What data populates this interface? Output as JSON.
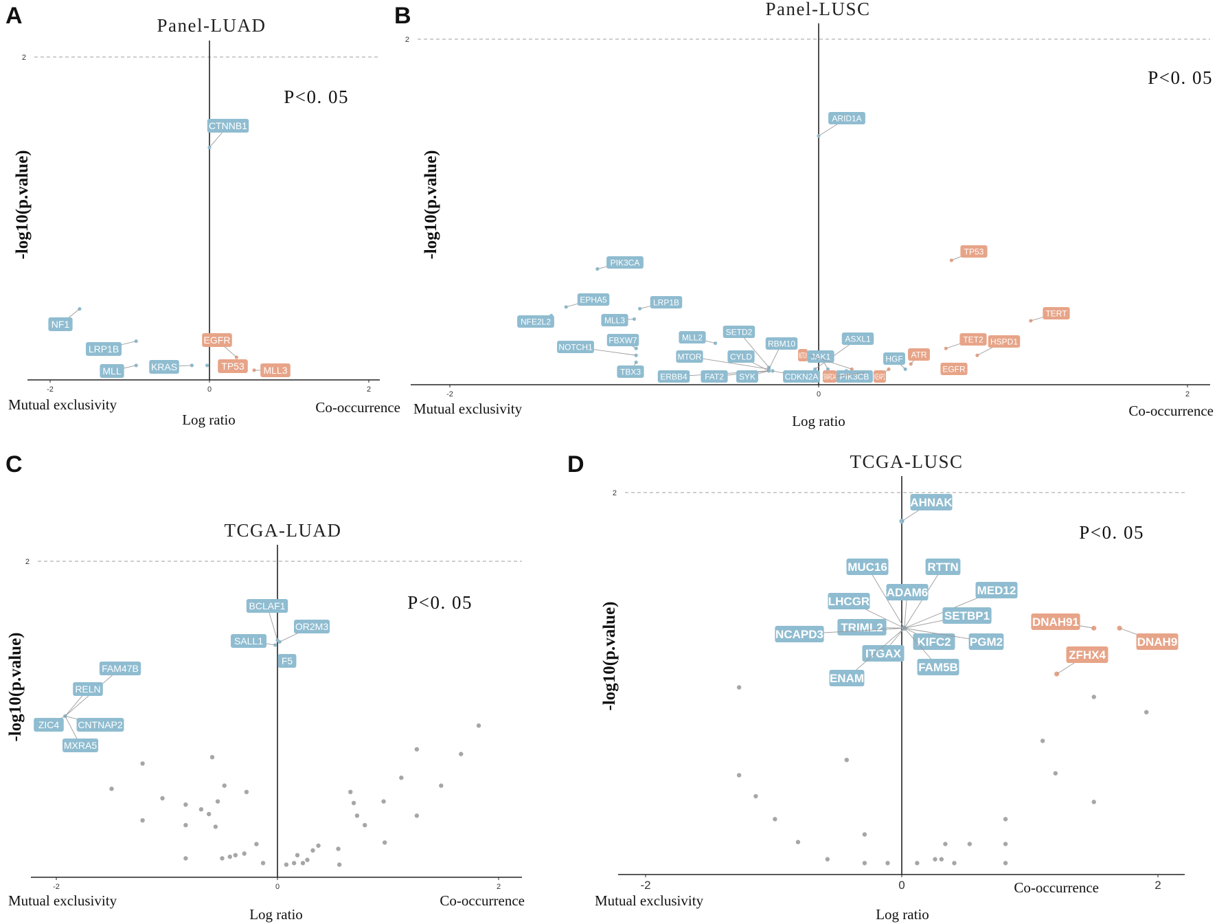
{
  "colors": {
    "blue": "#8fbcd0",
    "orange": "#e7a488",
    "grey": "#a6a6a6",
    "axis": "#222222",
    "dash": "#bdbdbd"
  },
  "chart_data": [
    {
      "panel_letter": "A",
      "type": "scatter",
      "title": "Panel-LUAD",
      "xlabel": "Log ratio",
      "ylabel": "-log10(p.value)",
      "left_label": "Mutual exclusivity",
      "right_label": "Co-occurrence",
      "pvalue_text": "P<0. 05",
      "xlim": [
        -2.2,
        2.15
      ],
      "ylim": [
        0,
        2.13
      ],
      "xticks": [
        "-2",
        "0",
        "2"
      ],
      "yticks": [
        "2"
      ],
      "points": [
        {
          "x": -1.63,
          "y": 0.44,
          "color": "blue",
          "label": "NF1"
        },
        {
          "x": -0.92,
          "y": 0.24,
          "color": "blue",
          "label": "LRP1B"
        },
        {
          "x": -0.92,
          "y": 0.09,
          "color": "blue",
          "label": "MLL"
        },
        {
          "x": -0.22,
          "y": 0.09,
          "color": "blue",
          "label": "KRAS"
        },
        {
          "x": -0.03,
          "y": 0.09,
          "color": "blue",
          "label": ""
        },
        {
          "x": 0.0,
          "y": 1.44,
          "color": "blue",
          "label": "CTNNB1"
        },
        {
          "x": 0.34,
          "y": 0.14,
          "color": "orange",
          "label": "EGFR"
        },
        {
          "x": 0.38,
          "y": 0.08,
          "color": "orange",
          "label": "TP53"
        },
        {
          "x": 0.56,
          "y": 0.06,
          "color": "orange",
          "label": "MLL3"
        }
      ]
    },
    {
      "panel_letter": "B",
      "type": "scatter",
      "title": "Panel-LUSC",
      "xlabel": "Log ratio",
      "ylabel": "-log10(p.value)",
      "left_label": "Mutual exclusivity",
      "right_label": "Co-occurrence",
      "pvalue_text": "P<0. 05",
      "xlim": [
        -2.2,
        2.15
      ],
      "ylim": [
        0,
        2.13
      ],
      "xticks": [
        "-2",
        "0",
        "2"
      ],
      "yticks": [
        "2"
      ],
      "points": [
        {
          "x": -1.2,
          "y": 0.67,
          "color": "blue",
          "label": "PIK3CA"
        },
        {
          "x": -1.37,
          "y": 0.45,
          "color": "blue",
          "label": "EPHA5"
        },
        {
          "x": -1.45,
          "y": 0.4,
          "color": "blue",
          "label": "NFE2L2"
        },
        {
          "x": -0.97,
          "y": 0.44,
          "color": "blue",
          "label": "LRP1B"
        },
        {
          "x": -1.0,
          "y": 0.38,
          "color": "blue",
          "label": "MLL3"
        },
        {
          "x": -0.99,
          "y": 0.21,
          "color": "blue",
          "label": "FBXW7"
        },
        {
          "x": -0.99,
          "y": 0.17,
          "color": "blue",
          "label": "NOTCH1"
        },
        {
          "x": -0.99,
          "y": 0.13,
          "color": "blue",
          "label": "TBX3"
        },
        {
          "x": -0.56,
          "y": 0.24,
          "color": "blue",
          "label": "MLL2"
        },
        {
          "x": -0.27,
          "y": 0.1,
          "color": "blue",
          "label": "SETD2"
        },
        {
          "x": -0.27,
          "y": 0.09,
          "color": "blue",
          "label": "RBM10"
        },
        {
          "x": -0.27,
          "y": 0.09,
          "color": "blue",
          "label": "MTOR"
        },
        {
          "x": -0.27,
          "y": 0.08,
          "color": "blue",
          "label": "CYLD"
        },
        {
          "x": -0.27,
          "y": 0.08,
          "color": "blue",
          "label": "ERBB4"
        },
        {
          "x": -0.27,
          "y": 0.08,
          "color": "blue",
          "label": "FAT2"
        },
        {
          "x": -0.27,
          "y": 0.08,
          "color": "blue",
          "label": "SYK"
        },
        {
          "x": -0.25,
          "y": 0.08,
          "color": "blue",
          "label": "CDKN2A"
        },
        {
          "x": -0.02,
          "y": 0.09,
          "color": "blue",
          "label": "ASXL1"
        },
        {
          "x": 0.05,
          "y": 0.09,
          "color": "blue",
          "label": "JAK1"
        },
        {
          "x": 0.15,
          "y": 0.08,
          "color": "blue",
          "label": "PIK3CB"
        },
        {
          "x": 0.18,
          "y": 0.09,
          "color": "orange",
          "label": "NOTCH"
        },
        {
          "x": 0.25,
          "y": 0.07,
          "color": "orange",
          "label": "SMARCA4"
        },
        {
          "x": 0.38,
          "y": 0.09,
          "color": "orange",
          "label": "KEAP1"
        },
        {
          "x": 0.47,
          "y": 0.09,
          "color": "blue",
          "label": "HGF"
        },
        {
          "x": 0.5,
          "y": 0.12,
          "color": "orange",
          "label": "ATR"
        },
        {
          "x": 0.69,
          "y": 0.21,
          "color": "orange",
          "label": "TET2"
        },
        {
          "x": 0.72,
          "y": 0.1,
          "color": "orange",
          "label": "EGFR"
        },
        {
          "x": 0.86,
          "y": 0.17,
          "color": "orange",
          "label": "HSPD1"
        },
        {
          "x": 0.72,
          "y": 0.72,
          "color": "orange",
          "label": "TP53"
        },
        {
          "x": 1.15,
          "y": 0.37,
          "color": "orange",
          "label": "TERT"
        },
        {
          "x": 0.0,
          "y": 1.44,
          "color": "blue",
          "label": "ARID1A"
        }
      ]
    },
    {
      "panel_letter": "C",
      "type": "scatter",
      "title": "TCGA-LUAD",
      "xlabel": "Log ratio",
      "ylabel": "-log10(p.value)",
      "left_label": "Mutual exclusivity",
      "right_label": "Co-occurrence",
      "pvalue_text": "P<0. 05",
      "xlim": [
        -2.2,
        2.15
      ],
      "ylim": [
        0,
        2.13
      ],
      "xticks": [
        "-2",
        "0",
        "2"
      ],
      "yticks": [
        "2"
      ],
      "points": [
        {
          "x": 0.0,
          "y": 1.5,
          "color": "blue",
          "label": "BCLAF1"
        },
        {
          "x": 0.02,
          "y": 1.49,
          "color": "blue",
          "label": "OR2M3"
        },
        {
          "x": -0.02,
          "y": 1.47,
          "color": "blue",
          "label": "SALL1"
        },
        {
          "x": 0.03,
          "y": 1.38,
          "color": "blue",
          "label": "F5"
        },
        {
          "x": -1.92,
          "y": 1.02,
          "color": "blue",
          "label": "FAM47B"
        },
        {
          "x": -1.92,
          "y": 1.02,
          "color": "blue",
          "label": "RELN"
        },
        {
          "x": -1.92,
          "y": 1.02,
          "color": "blue",
          "label": "ZIC4"
        },
        {
          "x": -1.92,
          "y": 1.02,
          "color": "blue",
          "label": "CNTNAP2"
        },
        {
          "x": -1.92,
          "y": 1.02,
          "color": "blue",
          "label": "MXRA5"
        },
        {
          "x": -1.5,
          "y": 0.56,
          "color": "grey",
          "label": ""
        },
        {
          "x": -1.22,
          "y": 0.72,
          "color": "grey",
          "label": ""
        },
        {
          "x": -1.22,
          "y": 0.36,
          "color": "grey",
          "label": ""
        },
        {
          "x": -1.04,
          "y": 0.5,
          "color": "grey",
          "label": ""
        },
        {
          "x": -0.83,
          "y": 0.46,
          "color": "grey",
          "label": ""
        },
        {
          "x": -0.83,
          "y": 0.33,
          "color": "grey",
          "label": ""
        },
        {
          "x": -0.83,
          "y": 0.12,
          "color": "grey",
          "label": ""
        },
        {
          "x": -0.69,
          "y": 0.43,
          "color": "grey",
          "label": ""
        },
        {
          "x": -0.62,
          "y": 0.4,
          "color": "grey",
          "label": ""
        },
        {
          "x": -0.59,
          "y": 0.76,
          "color": "grey",
          "label": ""
        },
        {
          "x": -0.56,
          "y": 0.32,
          "color": "grey",
          "label": ""
        },
        {
          "x": -0.54,
          "y": 0.48,
          "color": "grey",
          "label": ""
        },
        {
          "x": -0.48,
          "y": 0.58,
          "color": "grey",
          "label": ""
        },
        {
          "x": -0.5,
          "y": 0.12,
          "color": "grey",
          "label": ""
        },
        {
          "x": -0.43,
          "y": 0.13,
          "color": "grey",
          "label": ""
        },
        {
          "x": -0.38,
          "y": 0.14,
          "color": "grey",
          "label": ""
        },
        {
          "x": -0.3,
          "y": 0.15,
          "color": "grey",
          "label": ""
        },
        {
          "x": -0.28,
          "y": 0.54,
          "color": "grey",
          "label": ""
        },
        {
          "x": -0.19,
          "y": 0.21,
          "color": "grey",
          "label": ""
        },
        {
          "x": -0.13,
          "y": 0.09,
          "color": "grey",
          "label": ""
        },
        {
          "x": 0.08,
          "y": 0.08,
          "color": "grey",
          "label": ""
        },
        {
          "x": 0.15,
          "y": 0.09,
          "color": "grey",
          "label": ""
        },
        {
          "x": 0.18,
          "y": 0.14,
          "color": "grey",
          "label": ""
        },
        {
          "x": 0.23,
          "y": 0.09,
          "color": "grey",
          "label": ""
        },
        {
          "x": 0.27,
          "y": 0.11,
          "color": "grey",
          "label": ""
        },
        {
          "x": 0.32,
          "y": 0.17,
          "color": "grey",
          "label": ""
        },
        {
          "x": 0.37,
          "y": 0.2,
          "color": "grey",
          "label": ""
        },
        {
          "x": 0.56,
          "y": 0.08,
          "color": "grey",
          "label": ""
        },
        {
          "x": 0.55,
          "y": 0.18,
          "color": "grey",
          "label": ""
        },
        {
          "x": 0.66,
          "y": 0.54,
          "color": "grey",
          "label": ""
        },
        {
          "x": 0.69,
          "y": 0.47,
          "color": "grey",
          "label": ""
        },
        {
          "x": 0.72,
          "y": 0.39,
          "color": "grey",
          "label": ""
        },
        {
          "x": 0.79,
          "y": 0.33,
          "color": "grey",
          "label": ""
        },
        {
          "x": 0.96,
          "y": 0.48,
          "color": "grey",
          "label": ""
        },
        {
          "x": 0.97,
          "y": 0.22,
          "color": "grey",
          "label": ""
        },
        {
          "x": 1.12,
          "y": 0.63,
          "color": "grey",
          "label": ""
        },
        {
          "x": 1.26,
          "y": 0.81,
          "color": "grey",
          "label": ""
        },
        {
          "x": 1.26,
          "y": 0.39,
          "color": "grey",
          "label": ""
        },
        {
          "x": 1.48,
          "y": 0.58,
          "color": "grey",
          "label": ""
        },
        {
          "x": 1.66,
          "y": 0.78,
          "color": "grey",
          "label": ""
        },
        {
          "x": 1.82,
          "y": 0.96,
          "color": "grey",
          "label": ""
        }
      ]
    },
    {
      "panel_letter": "D",
      "type": "scatter",
      "title": "TCGA-LUSC",
      "xlabel": "Log ratio",
      "ylabel": "-log10(p.value)",
      "left_label": "Mutual exclusivity",
      "right_label": "Co-occurrence",
      "pvalue_text": "P<0. 05",
      "xlim": [
        -2.2,
        2.2
      ],
      "ylim": [
        0,
        2.13
      ],
      "xticks": [
        "-2",
        "0",
        "2"
      ],
      "yticks": [
        "2"
      ],
      "points": [
        {
          "x": 0.0,
          "y": 1.85,
          "color": "blue",
          "label": "AHNAK"
        },
        {
          "x": 0.02,
          "y": 1.29,
          "color": "blue",
          "label": "MUC16"
        },
        {
          "x": 0.02,
          "y": 1.29,
          "color": "blue",
          "label": "RTTN"
        },
        {
          "x": 0.02,
          "y": 1.29,
          "color": "blue",
          "label": "ADAM6"
        },
        {
          "x": 0.02,
          "y": 1.29,
          "color": "blue",
          "label": "LHCGR"
        },
        {
          "x": 0.02,
          "y": 1.29,
          "color": "blue",
          "label": "MED12"
        },
        {
          "x": 0.02,
          "y": 1.29,
          "color": "blue",
          "label": "SETBP1"
        },
        {
          "x": 0.02,
          "y": 1.29,
          "color": "blue",
          "label": "TRIML2"
        },
        {
          "x": 0.02,
          "y": 1.29,
          "color": "blue",
          "label": "NCAPD3"
        },
        {
          "x": 0.02,
          "y": 1.29,
          "color": "blue",
          "label": "KIFC2"
        },
        {
          "x": 0.02,
          "y": 1.29,
          "color": "blue",
          "label": "PGM2"
        },
        {
          "x": 0.02,
          "y": 1.29,
          "color": "blue",
          "label": "ITGAX"
        },
        {
          "x": 0.02,
          "y": 1.29,
          "color": "blue",
          "label": "FAM5B"
        },
        {
          "x": 0.02,
          "y": 1.29,
          "color": "blue",
          "label": "ENAM"
        },
        {
          "x": 1.5,
          "y": 1.29,
          "color": "orange",
          "label": "DNAH91"
        },
        {
          "x": 1.7,
          "y": 1.29,
          "color": "orange",
          "label": "DNAH9"
        },
        {
          "x": 1.21,
          "y": 1.05,
          "color": "orange",
          "label": "ZFHX4"
        },
        {
          "x": -1.27,
          "y": 0.98,
          "color": "grey",
          "label": ""
        },
        {
          "x": -1.27,
          "y": 0.52,
          "color": "grey",
          "label": ""
        },
        {
          "x": -1.14,
          "y": 0.41,
          "color": "grey",
          "label": ""
        },
        {
          "x": -0.99,
          "y": 0.29,
          "color": "grey",
          "label": ""
        },
        {
          "x": -0.81,
          "y": 0.17,
          "color": "grey",
          "label": ""
        },
        {
          "x": -0.58,
          "y": 0.08,
          "color": "grey",
          "label": ""
        },
        {
          "x": -0.43,
          "y": 0.6,
          "color": "grey",
          "label": ""
        },
        {
          "x": -0.29,
          "y": 0.21,
          "color": "grey",
          "label": ""
        },
        {
          "x": -0.29,
          "y": 0.06,
          "color": "grey",
          "label": ""
        },
        {
          "x": -0.11,
          "y": 0.06,
          "color": "grey",
          "label": ""
        },
        {
          "x": 0.12,
          "y": 0.06,
          "color": "grey",
          "label": ""
        },
        {
          "x": 0.26,
          "y": 0.08,
          "color": "grey",
          "label": ""
        },
        {
          "x": 0.31,
          "y": 0.08,
          "color": "grey",
          "label": ""
        },
        {
          "x": 0.34,
          "y": 0.16,
          "color": "grey",
          "label": ""
        },
        {
          "x": 0.41,
          "y": 0.06,
          "color": "grey",
          "label": ""
        },
        {
          "x": 0.53,
          "y": 0.16,
          "color": "grey",
          "label": ""
        },
        {
          "x": 0.81,
          "y": 0.29,
          "color": "grey",
          "label": ""
        },
        {
          "x": 0.81,
          "y": 0.16,
          "color": "grey",
          "label": ""
        },
        {
          "x": 0.81,
          "y": 0.06,
          "color": "grey",
          "label": ""
        },
        {
          "x": 1.1,
          "y": 0.7,
          "color": "grey",
          "label": ""
        },
        {
          "x": 1.2,
          "y": 0.53,
          "color": "grey",
          "label": ""
        },
        {
          "x": 1.5,
          "y": 0.93,
          "color": "grey",
          "label": ""
        },
        {
          "x": 1.5,
          "y": 0.38,
          "color": "grey",
          "label": ""
        },
        {
          "x": 1.91,
          "y": 0.85,
          "color": "grey",
          "label": ""
        }
      ]
    }
  ]
}
